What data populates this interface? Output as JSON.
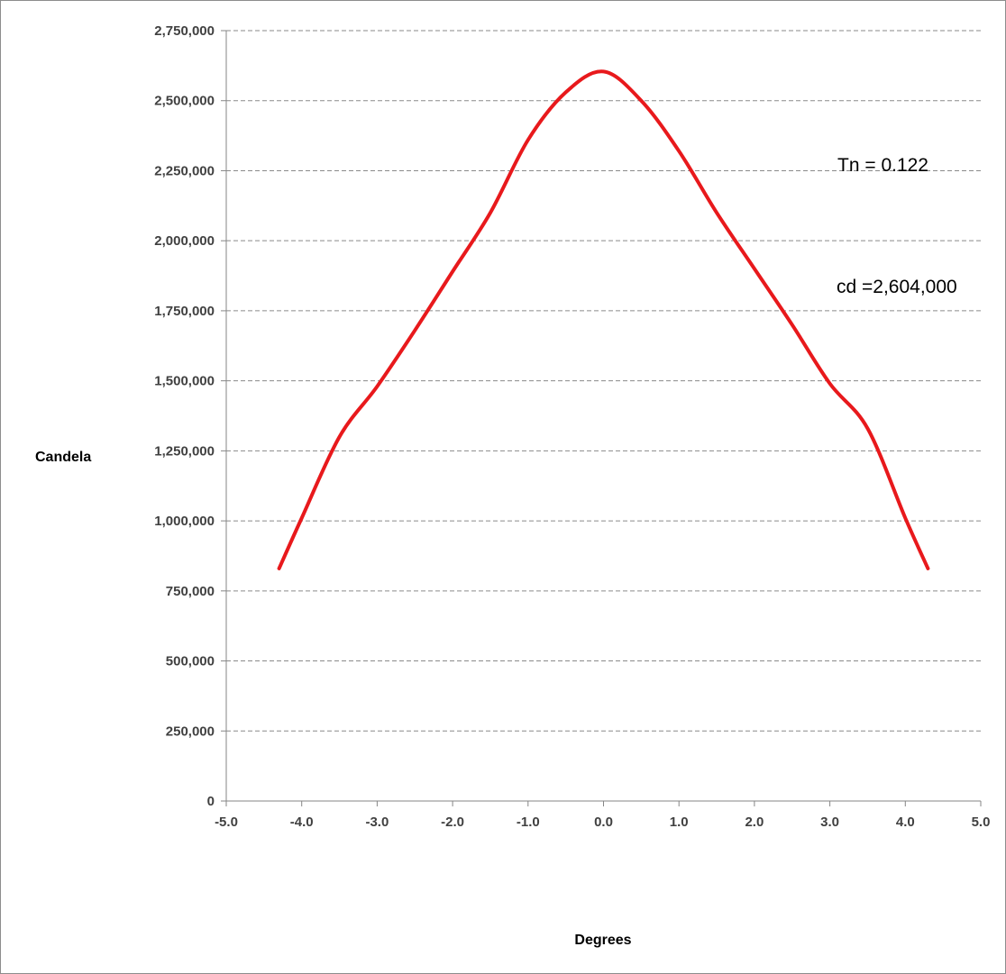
{
  "chart_data": {
    "type": "line",
    "title": "",
    "xlabel": "Degrees",
    "ylabel": "Candela",
    "xlim": [
      -5.0,
      5.0
    ],
    "ylim": [
      0,
      2750000
    ],
    "x_ticks": [
      -5.0,
      -4.0,
      -3.0,
      -2.0,
      -1.0,
      0.0,
      1.0,
      2.0,
      3.0,
      4.0,
      5.0
    ],
    "x_tick_labels": [
      "-5.0",
      "-4.0",
      "-3.0",
      "-2.0",
      "-1.0",
      "0.0",
      "1.0",
      "2.0",
      "3.0",
      "4.0",
      "5.0"
    ],
    "y_ticks": [
      0,
      250000,
      500000,
      750000,
      1000000,
      1250000,
      1500000,
      1750000,
      2000000,
      2250000,
      2500000,
      2750000
    ],
    "y_tick_labels": [
      "0",
      "250,000",
      "500,000",
      "750,000",
      "1,000,000",
      "1,250,000",
      "1,500,000",
      "1,750,000",
      "2,000,000",
      "2,250,000",
      "2,500,000",
      "2,750,000"
    ],
    "grid": "horizontal dashed",
    "legend": "none",
    "series": [
      {
        "color": "#e8191c",
        "x": [
          -4.3,
          -4.0,
          -3.5,
          -3.0,
          -2.5,
          -2.0,
          -1.5,
          -1.0,
          -0.5,
          0.0,
          0.5,
          1.0,
          1.5,
          2.0,
          2.5,
          3.0,
          3.5,
          4.0,
          4.3
        ],
        "y": [
          830000,
          1010000,
          1300000,
          1480000,
          1680000,
          1890000,
          2100000,
          2360000,
          2530000,
          2604000,
          2500000,
          2320000,
          2100000,
          1900000,
          1700000,
          1490000,
          1330000,
          1010000,
          830000
        ]
      }
    ],
    "annotations": [
      {
        "text": "Tn = 0.122"
      },
      {
        "text": "cd =2,604,000"
      }
    ]
  }
}
